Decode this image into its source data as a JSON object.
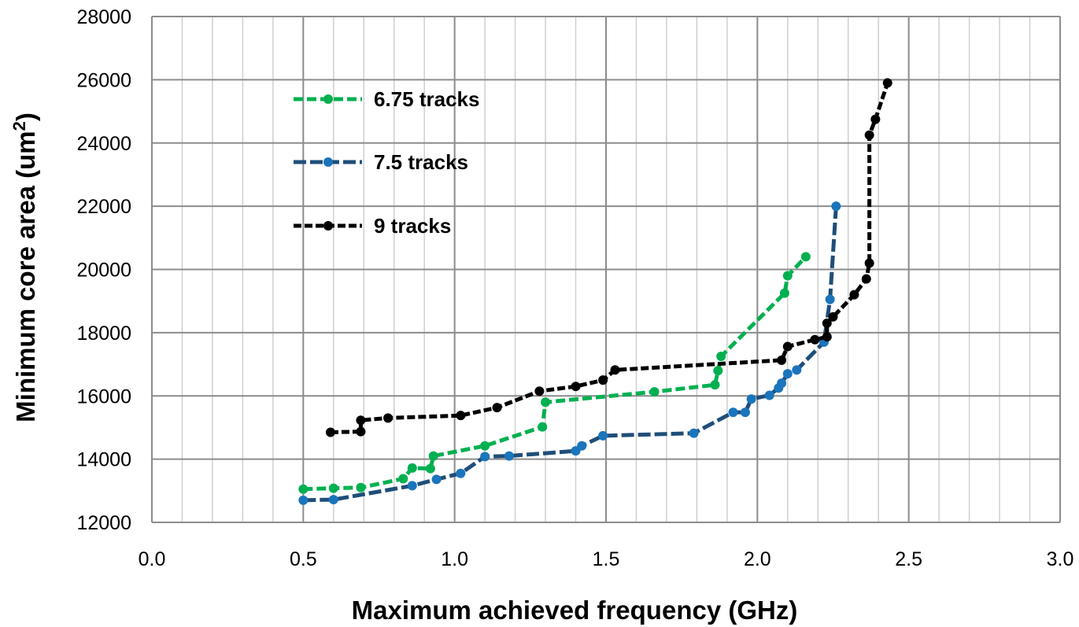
{
  "chart_data": {
    "type": "line",
    "xlabel": "Maximum achieved frequency (GHz)",
    "ylabel_main": "Minimum core area (um",
    "ylabel_sup": "2",
    "ylabel_close": ")",
    "xlim": [
      0.0,
      3.0
    ],
    "ylim": [
      12000,
      28000
    ],
    "x_ticks": [
      "0.0",
      "0.5",
      "1.0",
      "1.5",
      "2.0",
      "2.5",
      "3.0"
    ],
    "y_ticks": [
      "12000",
      "14000",
      "16000",
      "18000",
      "20000",
      "22000",
      "24000",
      "26000",
      "28000"
    ],
    "grid": true,
    "legend_position": "top-left",
    "series": [
      {
        "name": "6.75 tracks",
        "color": "#00b050",
        "x": [
          0.5,
          0.6,
          0.69,
          0.83,
          0.86,
          0.92,
          0.93,
          1.1,
          1.29,
          1.3,
          1.66,
          1.86,
          1.87,
          1.88,
          2.09,
          2.1,
          2.16
        ],
        "y": [
          13050,
          13080,
          13100,
          13380,
          13720,
          13700,
          14100,
          14420,
          15020,
          15800,
          16130,
          16350,
          16800,
          17250,
          19250,
          19800,
          20400
        ]
      },
      {
        "name": "7.5 tracks",
        "color": "#1f4e79",
        "x": [
          0.5,
          0.6,
          0.86,
          0.94,
          1.02,
          1.1,
          1.18,
          1.4,
          1.42,
          1.49,
          1.79,
          1.92,
          1.96,
          1.98,
          2.04,
          2.07,
          2.08,
          2.1,
          2.13,
          2.22,
          2.24,
          2.26
        ],
        "y": [
          12700,
          12720,
          13160,
          13360,
          13550,
          14080,
          14100,
          14260,
          14420,
          14740,
          14820,
          15480,
          15480,
          15900,
          16020,
          16250,
          16400,
          16700,
          16820,
          17700,
          19050,
          22000
        ]
      },
      {
        "name": "9 tracks",
        "color": "#000000",
        "x": [
          0.59,
          0.69,
          0.69,
          0.78,
          1.02,
          1.14,
          1.28,
          1.4,
          1.49,
          1.53,
          2.08,
          2.1,
          2.19,
          2.23,
          2.23,
          2.25,
          2.32,
          2.36,
          2.37,
          2.37,
          2.39,
          2.43
        ],
        "y": [
          14850,
          14870,
          15230,
          15300,
          15380,
          15630,
          16150,
          16300,
          16500,
          16820,
          17130,
          17560,
          17780,
          17870,
          18300,
          18500,
          19200,
          19700,
          20200,
          24250,
          24750,
          25900
        ]
      }
    ]
  }
}
